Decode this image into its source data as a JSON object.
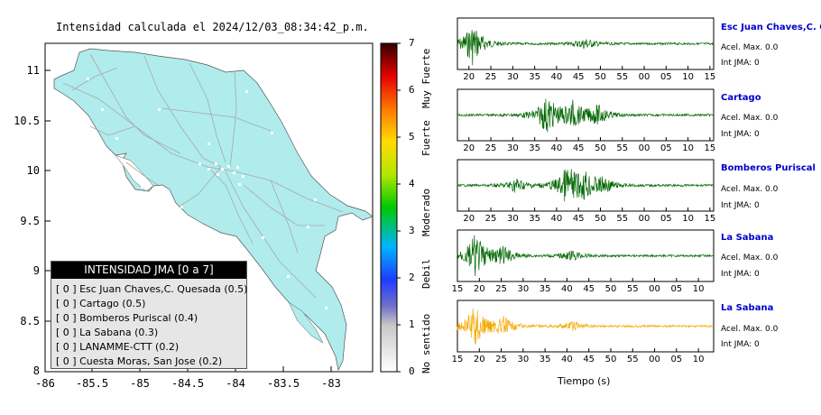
{
  "map": {
    "title": "Intensidad calculada el 2024/12/03_08:34:42_p.m.",
    "lon_ticks": [
      "-86",
      "-85.5",
      "-85",
      "-84.5",
      "-84",
      "-83.5",
      "-83"
    ],
    "lat_ticks": [
      "11",
      "10.5",
      "10",
      "9.5",
      "9",
      "8.5",
      "8"
    ],
    "land_color": "#b0ecec",
    "road_color": "#aaaaaa"
  },
  "legend": {
    "title": "INTENSIDAD JMA [0 a 7]",
    "rows": [
      "[ 0 ]  Esc Juan Chaves,C. Quesada (0.5)",
      "[ 0 ]  Cartago (0.5)",
      "[ 0 ]  Bomberos Puriscal (0.4)",
      "[ 0 ]  La Sabana (0.3)",
      "[ 0 ]  LANAMME-CTT (0.2)",
      "[ 0 ]  Cuesta Moras, San Jose (0.2)"
    ]
  },
  "colorbar": {
    "levels": [
      "0",
      "1",
      "2",
      "3",
      "4",
      "5",
      "6",
      "7"
    ],
    "words": [
      "No sentido",
      "Debil",
      "Moderado",
      "Fuerte",
      "Muy Fuerte"
    ]
  },
  "waveforms": {
    "xlabel": "Tiempo (s)",
    "panels": [
      {
        "name": "Esc Juan Chaves,C. Qu",
        "acc": "Acel. Max. 0.0",
        "int": "Int JMA: 0",
        "color": "#006600",
        "ticks": [
          "20",
          "25",
          "30",
          "35",
          "40",
          "45",
          "50",
          "55",
          "00",
          "05",
          "10",
          "15"
        ]
      },
      {
        "name": "Cartago",
        "acc": "Acel. Max. 0.0",
        "int": "Int JMA: 0",
        "color": "#006600",
        "ticks": [
          "20",
          "25",
          "30",
          "35",
          "40",
          "45",
          "50",
          "55",
          "00",
          "05",
          "10",
          "15"
        ]
      },
      {
        "name": "Bomberos Puriscal",
        "acc": "Acel. Max. 0.0",
        "int": "Int JMA: 0",
        "color": "#006600",
        "ticks": [
          "20",
          "25",
          "30",
          "35",
          "40",
          "45",
          "50",
          "55",
          "00",
          "05",
          "10",
          "15"
        ]
      },
      {
        "name": "La Sabana",
        "acc": "Acel. Max. 0.0",
        "int": "Int JMA: 0",
        "color": "#006600",
        "ticks": [
          "15",
          "20",
          "25",
          "30",
          "35",
          "40",
          "45",
          "50",
          "55",
          "00",
          "05",
          "10"
        ]
      },
      {
        "name": "La Sabana",
        "acc": "Acel. Max. 0.0",
        "int": "Int JMA: 0",
        "color": "#f5a800",
        "ticks": [
          "15",
          "20",
          "25",
          "30",
          "35",
          "40",
          "45",
          "50",
          "55",
          "00",
          "05",
          "10"
        ]
      }
    ]
  }
}
